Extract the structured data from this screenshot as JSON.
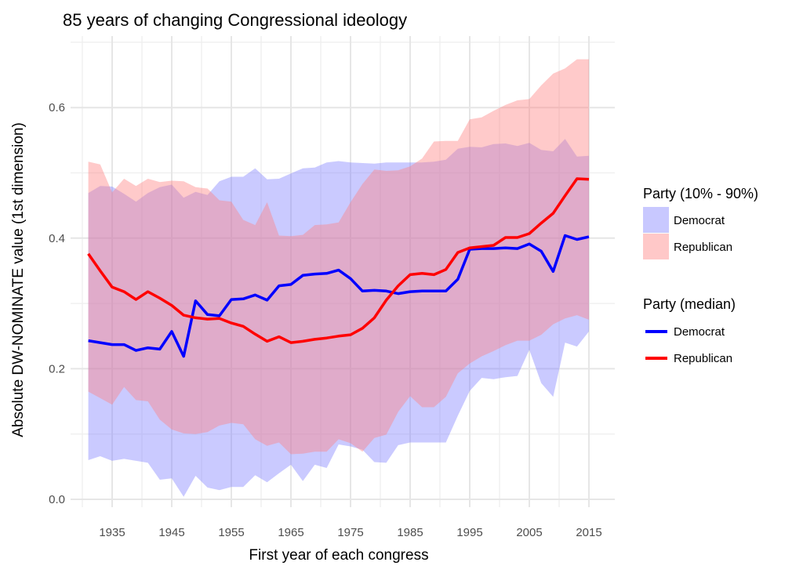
{
  "chart_data": {
    "type": "area",
    "title": "85 years of changing Congressional ideology",
    "xlabel": "First year of each congress",
    "ylabel": "Absolute DW-NOMINATE value (1st dimension)",
    "xlim": [
      1929,
      2018
    ],
    "ylim": [
      -0.0,
      0.7
    ],
    "x_ticks": [
      1935,
      1945,
      1955,
      1965,
      1975,
      1985,
      1995,
      2005,
      2015
    ],
    "y_ticks": [
      0.0,
      0.2,
      0.4,
      0.6
    ],
    "y_tick_labels": [
      "0.0",
      "0.2",
      "0.4",
      "0.6"
    ],
    "grid": true,
    "legend_position": "right",
    "x": [
      1931,
      1933,
      1935,
      1937,
      1939,
      1941,
      1943,
      1945,
      1947,
      1949,
      1951,
      1953,
      1955,
      1957,
      1959,
      1961,
      1963,
      1965,
      1967,
      1969,
      1971,
      1973,
      1975,
      1977,
      1979,
      1981,
      1983,
      1985,
      1987,
      1989,
      1991,
      1993,
      1995,
      1997,
      1999,
      2001,
      2003,
      2005,
      2007,
      2009,
      2011,
      2013,
      2015
    ],
    "bands": [
      {
        "name": "Democrat",
        "color": "#8080ff",
        "low": [
          0.06,
          0.066,
          0.059,
          0.062,
          0.059,
          0.056,
          0.03,
          0.032,
          0.004,
          0.036,
          0.018,
          0.014,
          0.019,
          0.019,
          0.037,
          0.026,
          0.04,
          0.053,
          0.028,
          0.053,
          0.048,
          0.084,
          0.081,
          0.076,
          0.057,
          0.056,
          0.083,
          0.087,
          0.087,
          0.087,
          0.087,
          0.128,
          0.166,
          0.186,
          0.184,
          0.187,
          0.189,
          0.229,
          0.178,
          0.157,
          0.24,
          0.234,
          0.257
        ],
        "high": [
          0.469,
          0.48,
          0.479,
          0.468,
          0.456,
          0.469,
          0.478,
          0.482,
          0.462,
          0.471,
          0.466,
          0.487,
          0.494,
          0.494,
          0.507,
          0.49,
          0.491,
          0.499,
          0.507,
          0.508,
          0.516,
          0.518,
          0.516,
          0.515,
          0.514,
          0.516,
          0.516,
          0.516,
          0.516,
          0.517,
          0.52,
          0.537,
          0.54,
          0.539,
          0.544,
          0.545,
          0.541,
          0.546,
          0.535,
          0.533,
          0.552,
          0.525,
          0.526
        ]
      },
      {
        "name": "Republican",
        "color": "#ff8080",
        "low": [
          0.165,
          0.155,
          0.145,
          0.172,
          0.152,
          0.15,
          0.122,
          0.107,
          0.101,
          0.1,
          0.103,
          0.113,
          0.117,
          0.115,
          0.092,
          0.082,
          0.087,
          0.069,
          0.07,
          0.073,
          0.073,
          0.092,
          0.086,
          0.073,
          0.094,
          0.099,
          0.134,
          0.158,
          0.141,
          0.141,
          0.157,
          0.193,
          0.208,
          0.219,
          0.227,
          0.236,
          0.243,
          0.243,
          0.252,
          0.268,
          0.277,
          0.282,
          0.275
        ],
        "high": [
          0.517,
          0.513,
          0.47,
          0.491,
          0.48,
          0.491,
          0.486,
          0.488,
          0.487,
          0.478,
          0.476,
          0.458,
          0.456,
          0.428,
          0.42,
          0.455,
          0.404,
          0.403,
          0.405,
          0.42,
          0.421,
          0.424,
          0.455,
          0.483,
          0.505,
          0.503,
          0.504,
          0.51,
          0.522,
          0.548,
          0.549,
          0.549,
          0.582,
          0.585,
          0.595,
          0.604,
          0.611,
          0.613,
          0.634,
          0.652,
          0.66,
          0.674,
          0.674
        ]
      }
    ],
    "series": [
      {
        "name": "Democrat",
        "color": "#0000ff",
        "values": [
          0.243,
          0.24,
          0.237,
          0.237,
          0.228,
          0.232,
          0.23,
          0.257,
          0.219,
          0.304,
          0.283,
          0.281,
          0.306,
          0.307,
          0.313,
          0.305,
          0.327,
          0.329,
          0.343,
          0.345,
          0.346,
          0.351,
          0.338,
          0.319,
          0.32,
          0.319,
          0.315,
          0.318,
          0.319,
          0.319,
          0.319,
          0.337,
          0.383,
          0.384,
          0.384,
          0.385,
          0.384,
          0.391,
          0.38,
          0.349,
          0.404,
          0.398,
          0.402
        ]
      },
      {
        "name": "Republican",
        "color": "#ff0000",
        "values": [
          0.376,
          0.35,
          0.325,
          0.318,
          0.306,
          0.318,
          0.308,
          0.297,
          0.282,
          0.278,
          0.276,
          0.277,
          0.27,
          0.265,
          0.253,
          0.242,
          0.249,
          0.24,
          0.242,
          0.245,
          0.247,
          0.25,
          0.252,
          0.262,
          0.278,
          0.305,
          0.327,
          0.344,
          0.346,
          0.344,
          0.352,
          0.378,
          0.385,
          0.387,
          0.389,
          0.401,
          0.401,
          0.407,
          0.423,
          0.438,
          0.465,
          0.491,
          0.49
        ]
      }
    ],
    "legends": [
      {
        "title": "Party (10% - 90%)",
        "entries": [
          {
            "label": "Democrat",
            "color": "#c8c8ff"
          },
          {
            "label": "Republican",
            "color": "#ffc8c8"
          }
        ]
      },
      {
        "title": "Party (median)",
        "entries": [
          {
            "label": "Democrat",
            "color": "#0000ff"
          },
          {
            "label": "Republican",
            "color": "#ff0000"
          }
        ]
      }
    ]
  }
}
